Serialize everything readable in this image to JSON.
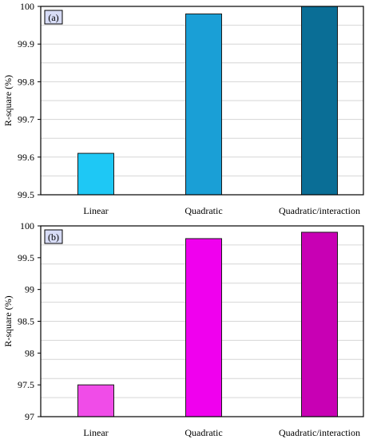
{
  "chart_data": [
    {
      "type": "bar",
      "panel_label": "(a)",
      "categories": [
        "Linear",
        "Quadratic",
        "Quadratic/interaction"
      ],
      "values": [
        99.61,
        99.98,
        100.0
      ],
      "ylabel": "R-square (%)",
      "ylim": [
        99.5,
        100
      ],
      "yticks": [
        99.5,
        99.6,
        99.7,
        99.8,
        99.9,
        100
      ],
      "ytick_labels": [
        "99.5",
        "99.6",
        "99.7",
        "99.8",
        "99.9",
        "100"
      ],
      "grid": true,
      "bar_colors": [
        "#1ec8f5",
        "#1a9fd6",
        "#0a6e96"
      ]
    },
    {
      "type": "bar",
      "panel_label": "(b)",
      "categories": [
        "Linear",
        "Quadratic",
        "Quadratic/interaction"
      ],
      "values": [
        97.5,
        99.8,
        99.9
      ],
      "ylabel": "R-square (%)",
      "ylim": [
        97,
        100
      ],
      "yticks": [
        97,
        97.5,
        98,
        98.5,
        99,
        99.5,
        100
      ],
      "ytick_labels": [
        "97",
        "97.5",
        "98",
        "98.5",
        "99",
        "99.5",
        "100"
      ],
      "grid": true,
      "bar_colors": [
        "#f04ce8",
        "#f000ee",
        "#c800b4"
      ]
    }
  ]
}
